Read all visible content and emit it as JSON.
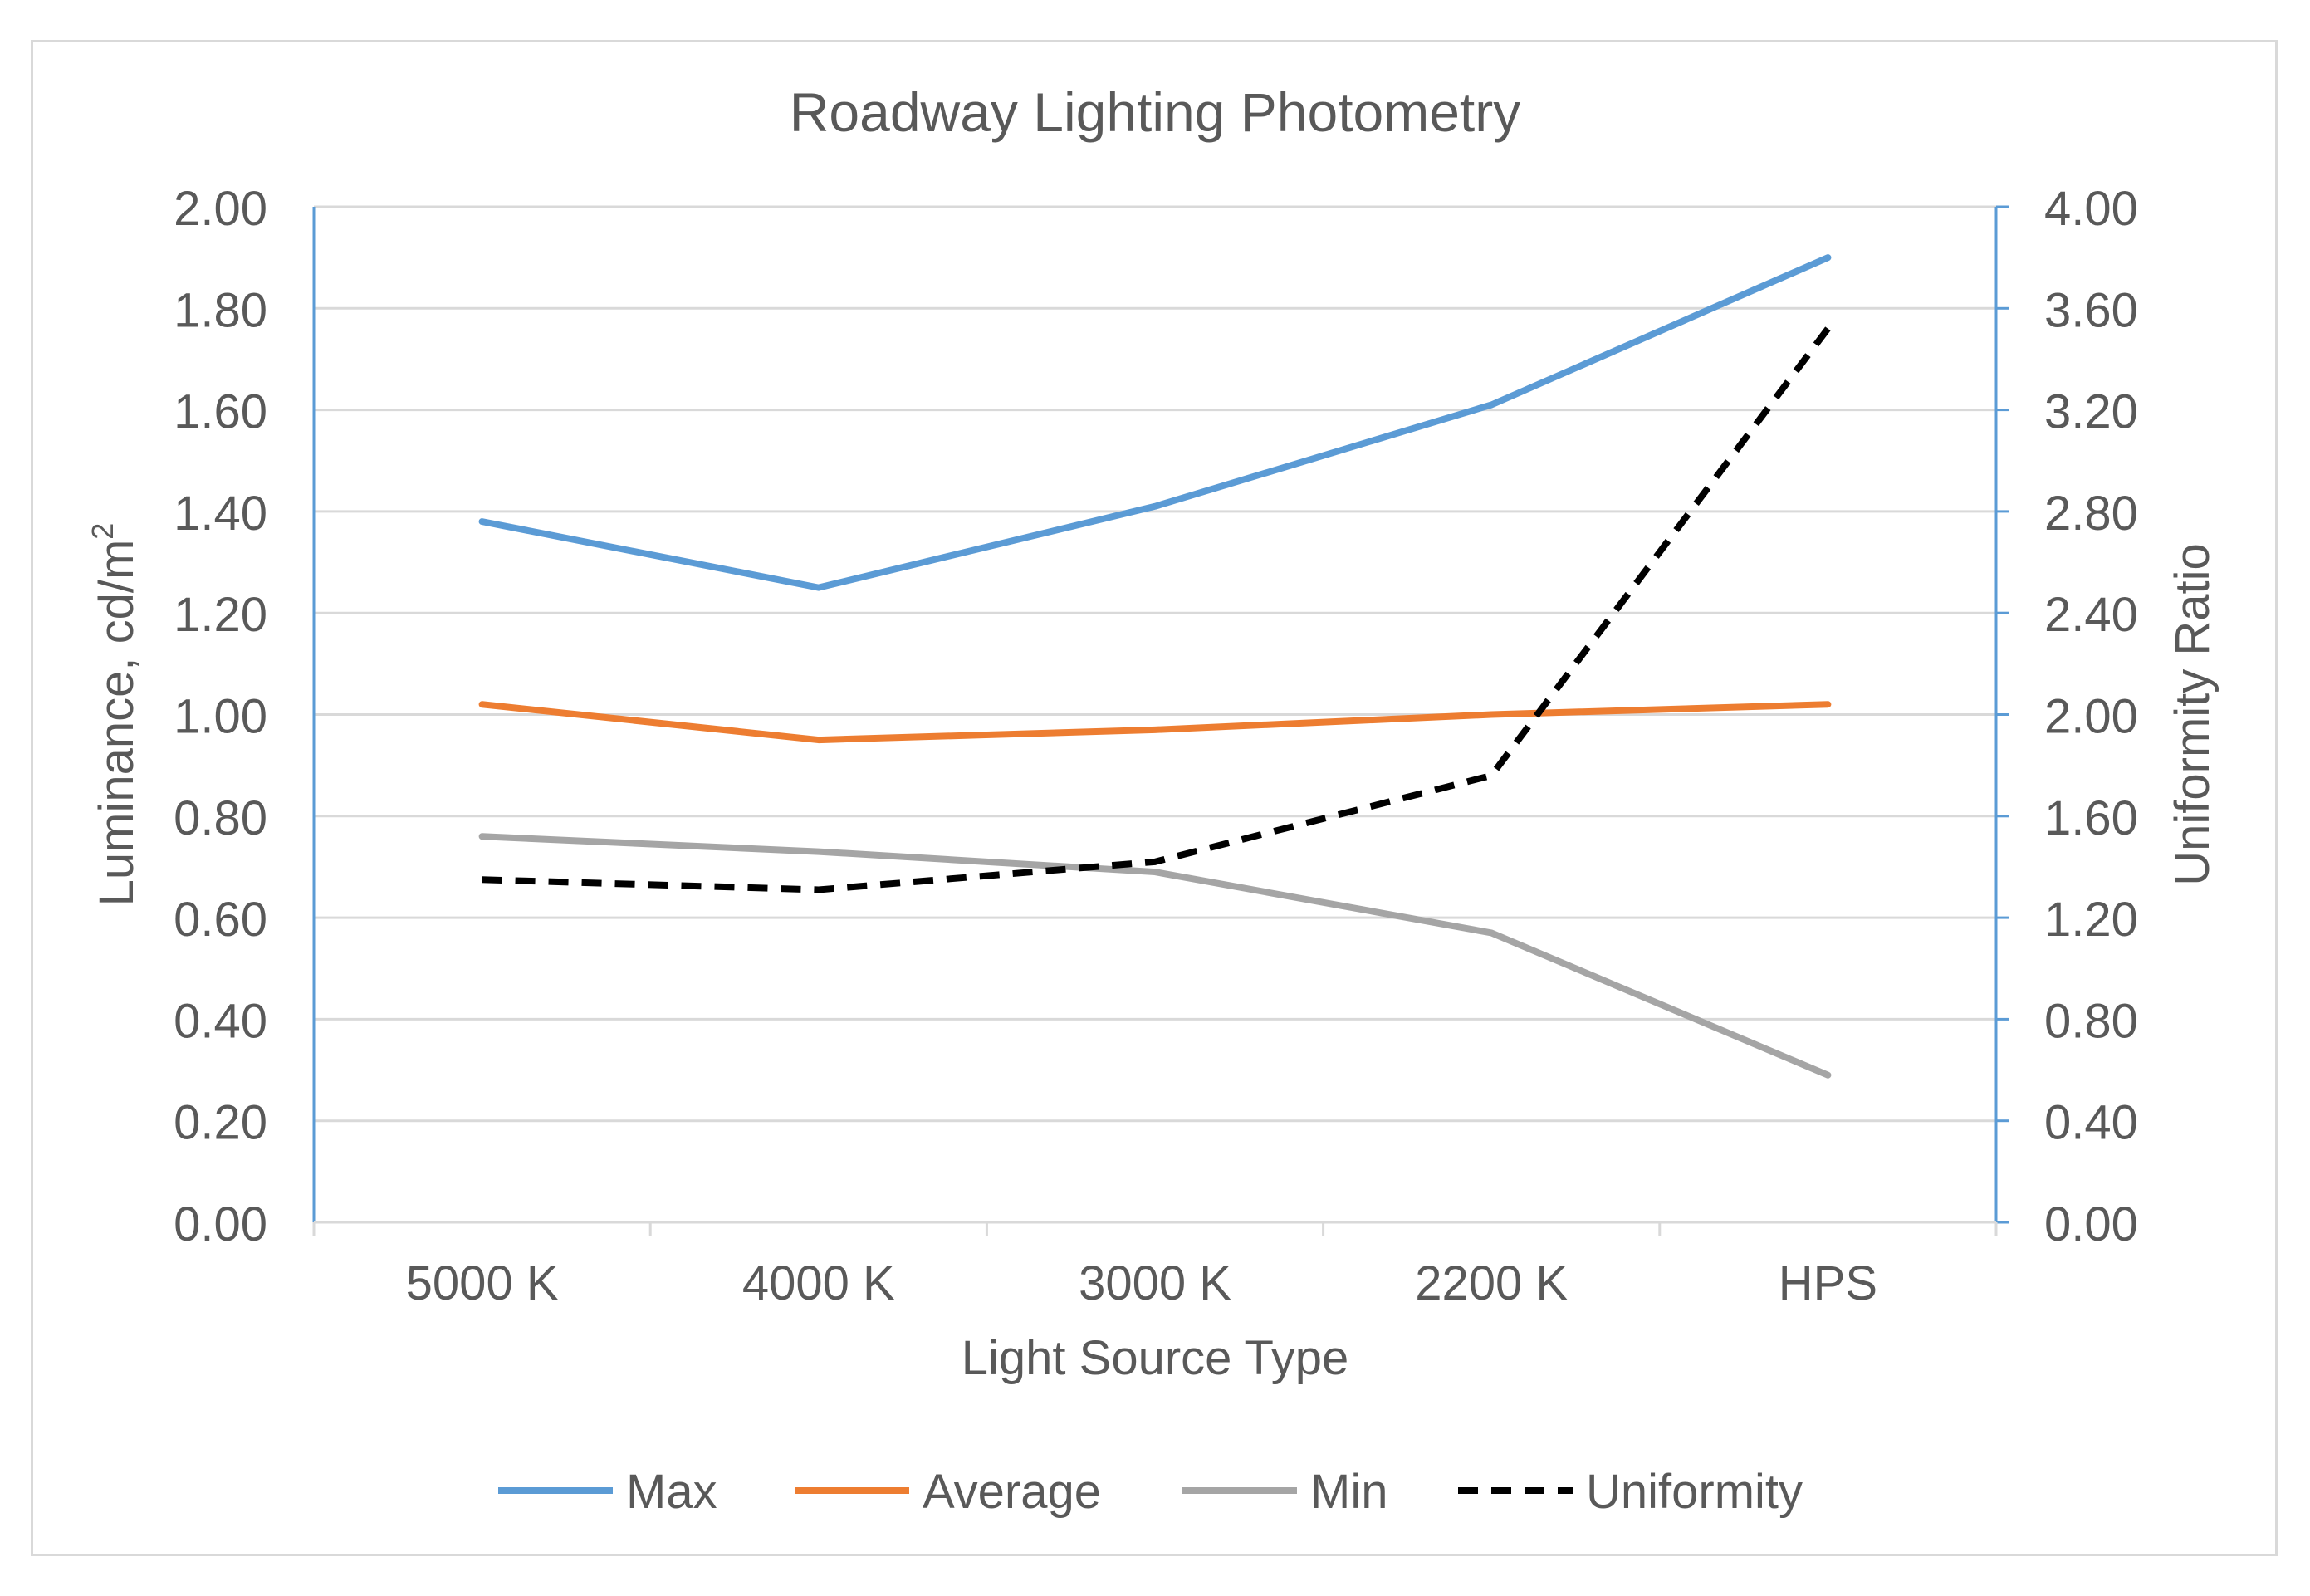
{
  "chart_data": {
    "type": "line",
    "title": "Roadway Lighting Photometry",
    "xlabel": "Light Source Type",
    "ylabel": "Luminance, cd/m",
    "ylabel_superscript": "2",
    "y2label": "Uniformity Ratio",
    "categories": [
      "5000 K",
      "4000 K",
      "3000 K",
      "2200 K",
      "HPS"
    ],
    "ylim": [
      0,
      2.0
    ],
    "y2lim": [
      0,
      4.0
    ],
    "y_ticks": [
      "0.00",
      "0.20",
      "0.40",
      "0.60",
      "0.80",
      "1.00",
      "1.20",
      "1.40",
      "1.60",
      "1.80",
      "2.00"
    ],
    "y2_ticks": [
      "0.00",
      "0.40",
      "0.80",
      "1.20",
      "1.60",
      "2.00",
      "2.40",
      "2.80",
      "3.20",
      "3.60",
      "4.00"
    ],
    "grid": true,
    "legend_position": "bottom",
    "series": [
      {
        "name": "Max",
        "axis": "left",
        "color": "#5b9bd5",
        "dash": false,
        "values": [
          1.38,
          1.25,
          1.41,
          1.61,
          1.9
        ]
      },
      {
        "name": "Average",
        "axis": "left",
        "color": "#ed7d31",
        "dash": false,
        "values": [
          1.02,
          0.95,
          0.97,
          1.0,
          1.02
        ]
      },
      {
        "name": "Min",
        "axis": "left",
        "color": "#a5a5a5",
        "dash": false,
        "values": [
          0.76,
          0.73,
          0.69,
          0.57,
          0.29
        ]
      },
      {
        "name": "Uniformity",
        "axis": "right",
        "color": "#000000",
        "dash": true,
        "values": [
          1.35,
          1.31,
          1.42,
          1.76,
          3.52
        ]
      }
    ]
  }
}
